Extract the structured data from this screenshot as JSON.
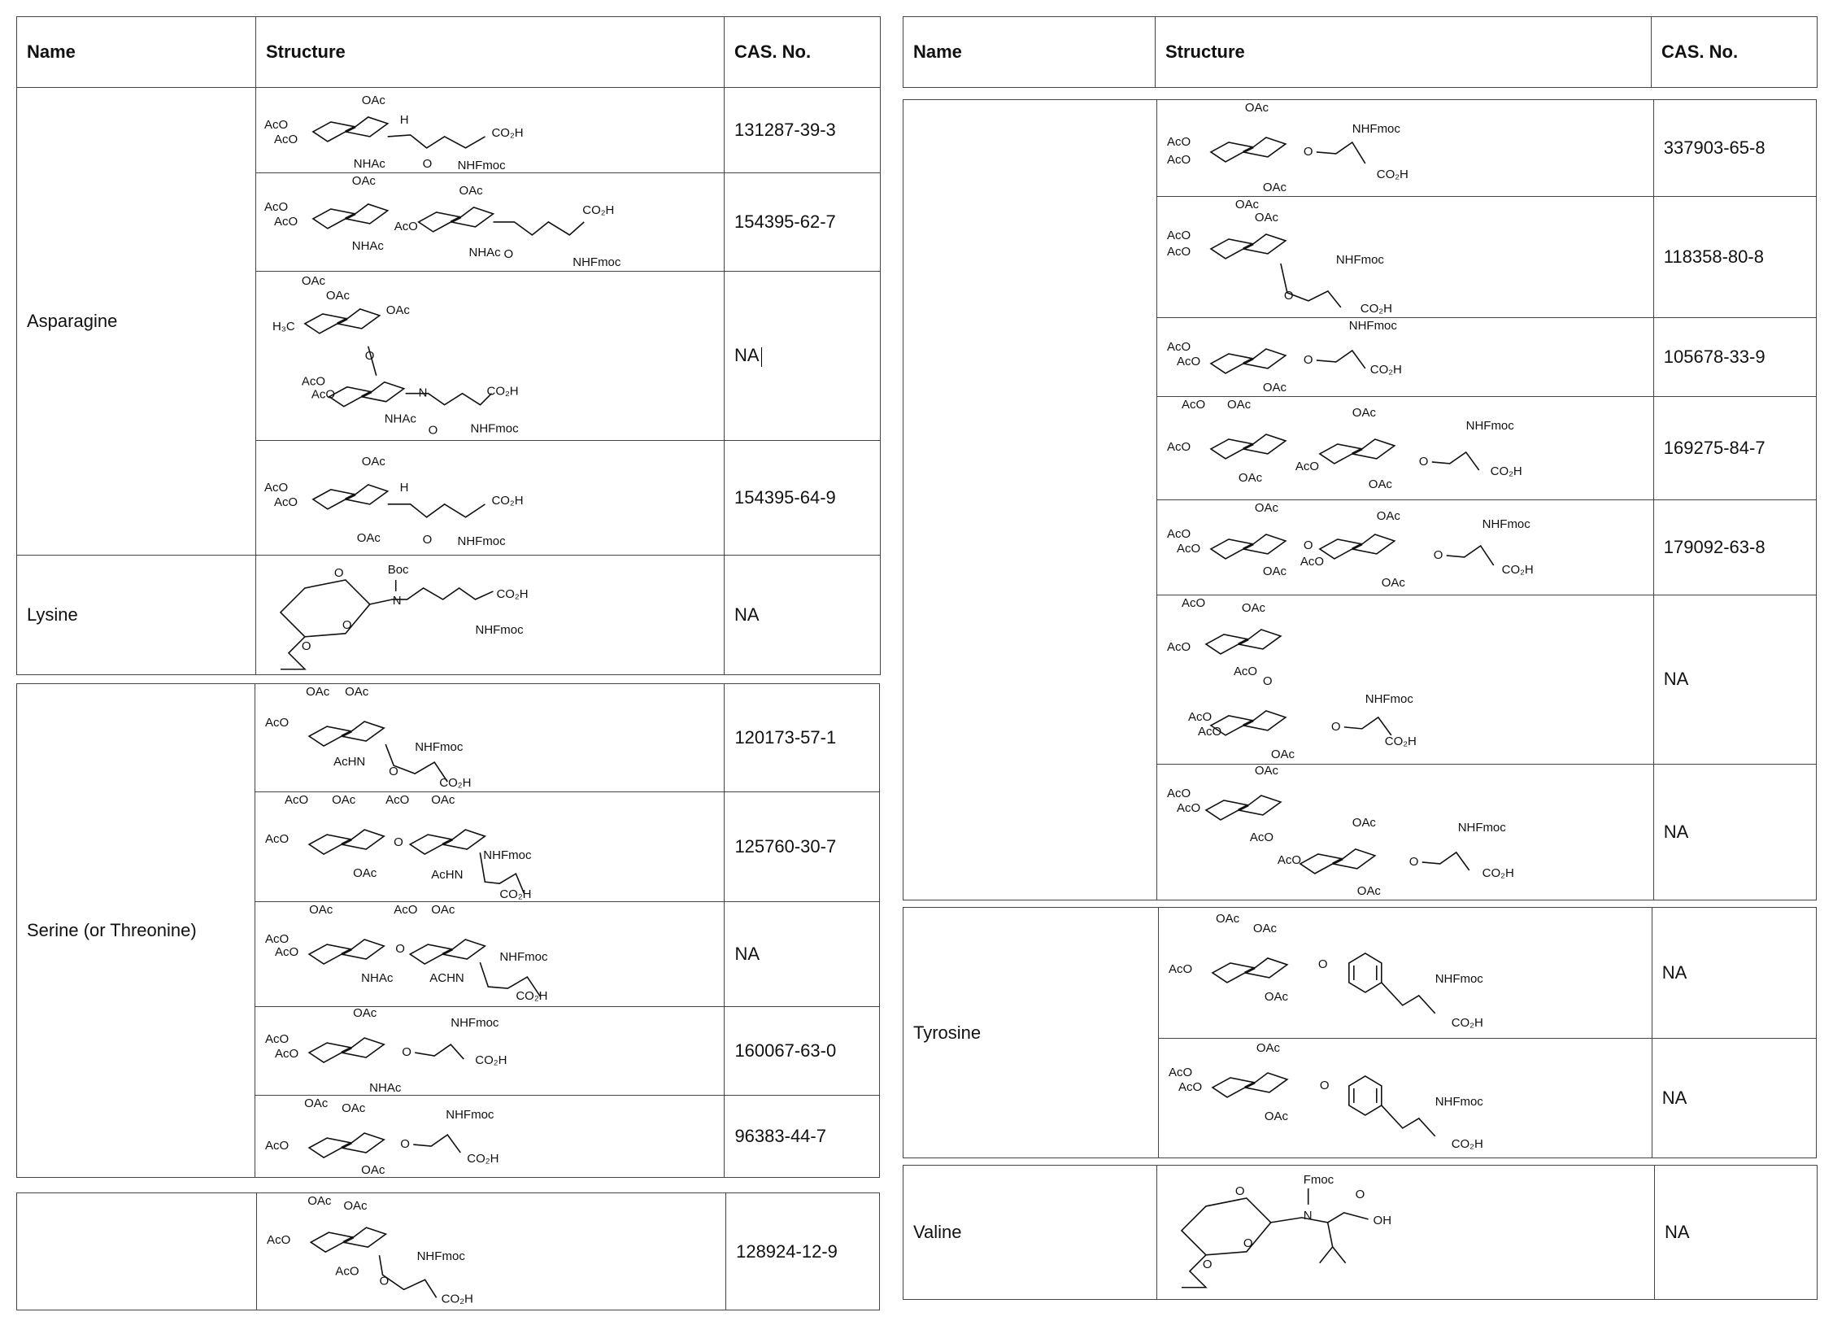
{
  "headers": {
    "name": "Name",
    "structure": "Structure",
    "cas": "CAS. No."
  },
  "left_rows": [
    {
      "name": "Asparagine",
      "cas": [
        "131287-39-3",
        "154395-62-7",
        "NA",
        "154395-64-9"
      ]
    },
    {
      "name": "Lysine",
      "cas": [
        "NA"
      ]
    },
    {
      "name": "Serine (or Threonine)",
      "cas": [
        "120173-57-1",
        "125760-30-7",
        "NA",
        "160067-63-0",
        "96383-44-7"
      ]
    },
    {
      "name": "",
      "cas": [
        "128924-12-9"
      ]
    }
  ],
  "right_rows": [
    {
      "name": "",
      "cas": [
        "337903-65-8",
        "118358-80-8",
        "105678-33-9",
        "169275-84-7",
        "179092-63-8",
        "NA",
        "NA"
      ]
    },
    {
      "name": "Tyrosine",
      "cas": [
        "NA",
        "NA"
      ]
    },
    {
      "name": "Valine",
      "cas": [
        "NA"
      ]
    }
  ],
  "labels": {
    "oac": "OAc",
    "aco": "AcO",
    "nhac": "NHAc",
    "achn": "AcHN",
    "achn2": "ACHN",
    "co2h": "CO₂H",
    "nhfmoc": "NHFmoc",
    "h": "H",
    "o": "O",
    "n": "N",
    "h3c": "H₃C",
    "boc": "Boc",
    "fmoc": "Fmoc",
    "oh": "OH"
  }
}
